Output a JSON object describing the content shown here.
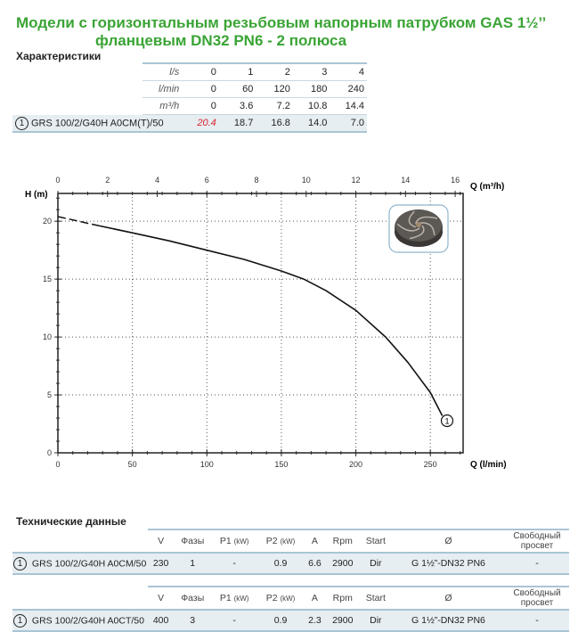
{
  "title": {
    "line1": "Модели с горизонтальным резьбовым напорным патрубком GAS 1½’’",
    "line2": "фланцевым DN32 PN6 - 2 полюса"
  },
  "characteristics": {
    "heading": "Характеристики",
    "rows": [
      {
        "unit": "l/s",
        "values": [
          "0",
          "1",
          "2",
          "3",
          "4"
        ]
      },
      {
        "unit": "l/min",
        "values": [
          "0",
          "60",
          "120",
          "180",
          "240"
        ]
      },
      {
        "unit": "m³/h",
        "values": [
          "0",
          "3.6",
          "7.2",
          "10.8",
          "14.4"
        ]
      }
    ],
    "model": {
      "num": "1",
      "name": "GRS 100/2/G40H A0CM(T)/50",
      "values": [
        "20.4",
        "18.7",
        "16.8",
        "14.0",
        "7.0"
      ],
      "highlight_color": "#d8232a"
    }
  },
  "chart_data": {
    "type": "line",
    "ylabel": "H (m)",
    "xlabel": "Q (l/min)",
    "x2label": "Q (m³/h)",
    "xlim": [
      0,
      272
    ],
    "ylim": [
      0,
      22.4
    ],
    "x2lim": [
      0,
      16.32
    ],
    "xticks": [
      0,
      50,
      100,
      150,
      200,
      250
    ],
    "yticks": [
      0,
      5,
      10,
      15,
      20
    ],
    "x2ticks": [
      0,
      2,
      4,
      6,
      8,
      10,
      12,
      14,
      16
    ],
    "grid": true,
    "series": [
      {
        "name": "1",
        "dashed_until": 28,
        "x": [
          0,
          28,
          50,
          75,
          100,
          125,
          150,
          165,
          180,
          200,
          220,
          235,
          250,
          258
        ],
        "y": [
          20.4,
          19.6,
          19.0,
          18.3,
          17.5,
          16.7,
          15.7,
          15.0,
          14.0,
          12.3,
          10.0,
          7.8,
          5.2,
          3.2
        ]
      }
    ]
  },
  "tech": {
    "heading": "Технические данные",
    "headers": [
      "V",
      "Фазы",
      "P1",
      "P2",
      "A",
      "Rpm",
      "Start",
      "Ø",
      "Свободный просвет"
    ],
    "unit": "(kW)",
    "rows": [
      {
        "num": "1",
        "name": "GRS 100/2/G40H A0CM/50",
        "values": [
          "230",
          "1",
          "-",
          "0.9",
          "6.6",
          "2900",
          "Dir",
          "G 1½”-DN32 PN6",
          "-"
        ]
      },
      {
        "num": "1",
        "name": "GRS 100/2/G40H A0CT/50",
        "values": [
          "400",
          "3",
          "-",
          "0.9",
          "2.3",
          "2900",
          "Dir",
          "G 1½”-DN32 PN6",
          "-"
        ]
      }
    ]
  }
}
